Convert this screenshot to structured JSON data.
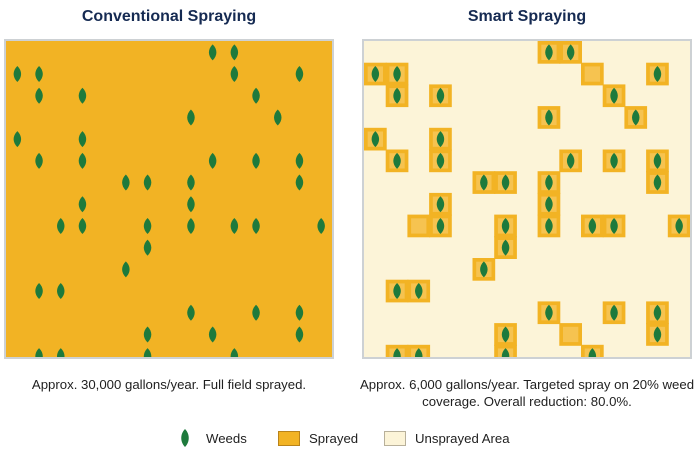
{
  "left_panel": {
    "title": "Conventional Spraying",
    "caption": "Approx. 30,000 gallons/year. Full field sprayed.",
    "weeds": [
      [
        9,
        0
      ],
      [
        10,
        0
      ],
      [
        0,
        1
      ],
      [
        1,
        1
      ],
      [
        10,
        1
      ],
      [
        13,
        1
      ],
      [
        1,
        2
      ],
      [
        3,
        2
      ],
      [
        11,
        2
      ],
      [
        8,
        3
      ],
      [
        12,
        3
      ],
      [
        0,
        4
      ],
      [
        3,
        4
      ],
      [
        1,
        5
      ],
      [
        3,
        5
      ],
      [
        9,
        5
      ],
      [
        11,
        5
      ],
      [
        13,
        5
      ],
      [
        5,
        6
      ],
      [
        6,
        6
      ],
      [
        8,
        6
      ],
      [
        13,
        6
      ],
      [
        3,
        7
      ],
      [
        8,
        7
      ],
      [
        2,
        8
      ],
      [
        3,
        8
      ],
      [
        6,
        8
      ],
      [
        8,
        8
      ],
      [
        10,
        8
      ],
      [
        11,
        8
      ],
      [
        14,
        8
      ],
      [
        6,
        9
      ],
      [
        5,
        10
      ],
      [
        1,
        11
      ],
      [
        2,
        11
      ],
      [
        8,
        12
      ],
      [
        11,
        12
      ],
      [
        13,
        12
      ],
      [
        6,
        13
      ],
      [
        9,
        13
      ],
      [
        13,
        13
      ],
      [
        1,
        14
      ],
      [
        2,
        14
      ],
      [
        6,
        14
      ],
      [
        10,
        14
      ]
    ]
  },
  "right_panel": {
    "title": "Smart Spraying",
    "caption": "Approx. 6,000 gallons/year. Targeted spray on 20% weed coverage. Overall reduction: 80.0%.",
    "sprayed_cells": [
      [
        8,
        0
      ],
      [
        9,
        0
      ],
      [
        0,
        1
      ],
      [
        1,
        1
      ],
      [
        10,
        1
      ],
      [
        13,
        1
      ],
      [
        1,
        2
      ],
      [
        3,
        2
      ],
      [
        11,
        2
      ],
      [
        8,
        3
      ],
      [
        12,
        3
      ],
      [
        0,
        4
      ],
      [
        3,
        4
      ],
      [
        1,
        5
      ],
      [
        3,
        5
      ],
      [
        9,
        5
      ],
      [
        11,
        5
      ],
      [
        13,
        5
      ],
      [
        5,
        6
      ],
      [
        6,
        6
      ],
      [
        8,
        6
      ],
      [
        13,
        6
      ],
      [
        3,
        7
      ],
      [
        8,
        7
      ],
      [
        2,
        8
      ],
      [
        3,
        8
      ],
      [
        6,
        8
      ],
      [
        8,
        8
      ],
      [
        10,
        8
      ],
      [
        11,
        8
      ],
      [
        14,
        8
      ],
      [
        6,
        9
      ],
      [
        5,
        10
      ],
      [
        1,
        11
      ],
      [
        2,
        11
      ],
      [
        8,
        12
      ],
      [
        11,
        12
      ],
      [
        13,
        12
      ],
      [
        6,
        13
      ],
      [
        9,
        13
      ],
      [
        13,
        13
      ],
      [
        1,
        14
      ],
      [
        2,
        14
      ],
      [
        6,
        14
      ],
      [
        10,
        14
      ]
    ],
    "weeds": [
      [
        8,
        0
      ],
      [
        9,
        0
      ],
      [
        0,
        1
      ],
      [
        1,
        1
      ],
      [
        13,
        1
      ],
      [
        1,
        2
      ],
      [
        3,
        2
      ],
      [
        11,
        2
      ],
      [
        8,
        3
      ],
      [
        12,
        3
      ],
      [
        0,
        4
      ],
      [
        3,
        4
      ],
      [
        1,
        5
      ],
      [
        3,
        5
      ],
      [
        9,
        5
      ],
      [
        11,
        5
      ],
      [
        13,
        5
      ],
      [
        5,
        6
      ],
      [
        6,
        6
      ],
      [
        8,
        6
      ],
      [
        13,
        6
      ],
      [
        3,
        7
      ],
      [
        8,
        7
      ],
      [
        3,
        8
      ],
      [
        6,
        8
      ],
      [
        8,
        8
      ],
      [
        10,
        8
      ],
      [
        11,
        8
      ],
      [
        14,
        8
      ],
      [
        6,
        9
      ],
      [
        5,
        10
      ],
      [
        1,
        11
      ],
      [
        2,
        11
      ],
      [
        8,
        12
      ],
      [
        11,
        12
      ],
      [
        13,
        12
      ],
      [
        6,
        13
      ],
      [
        13,
        13
      ],
      [
        1,
        14
      ],
      [
        2,
        14
      ],
      [
        6,
        14
      ],
      [
        10,
        14
      ]
    ]
  },
  "legend": {
    "weeds_label": "Weeds",
    "sprayed_label": "Sprayed",
    "unsprayed_label": "Unsprayed Area"
  },
  "colors": {
    "sprayed": "#f2b324",
    "unsprayed": "#fcf4d8",
    "weed": "#1e7a3c",
    "title": "#152a52"
  }
}
